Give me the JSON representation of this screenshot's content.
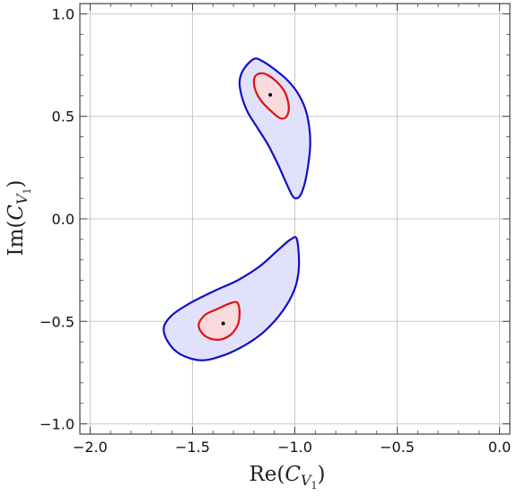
{
  "chart_data": {
    "type": "contour",
    "title": "",
    "xlabel": {
      "main": "Re(",
      "var": "C",
      "sub": "V",
      "subsub": "1",
      "close": ")"
    },
    "ylabel": {
      "main": "Im(",
      "var": "C",
      "sub": "V",
      "subsub": "1",
      "close": ")"
    },
    "xlim": [
      -2.05,
      0.05
    ],
    "ylim": [
      -1.05,
      1.05
    ],
    "grid": true,
    "x_ticks": [
      {
        "value": -2.0,
        "label": "−2.0"
      },
      {
        "value": -1.5,
        "label": "−1.5"
      },
      {
        "value": -1.0,
        "label": "−1.0"
      },
      {
        "value": -0.5,
        "label": "−0.5"
      },
      {
        "value": 0.0,
        "label": "0.0"
      }
    ],
    "y_ticks": [
      {
        "value": 1.0,
        "label": "1.0"
      },
      {
        "value": 0.5,
        "label": "0.5"
      },
      {
        "value": 0.0,
        "label": "0.0"
      },
      {
        "value": -0.5,
        "label": "−0.5"
      },
      {
        "value": -1.0,
        "label": "−1.0"
      }
    ],
    "colors": {
      "outer_stroke": "#1010c8",
      "outer_fill": "#e1e1fb",
      "inner_stroke": "#e01010",
      "inner_fill": "#fadadf",
      "point": "#000000",
      "grid": "#c8c8c8",
      "frame": "#444444"
    },
    "regions": [
      {
        "name": "upper",
        "best_fit": [
          -1.12,
          0.605
        ],
        "outer_contour": [
          [
            -1.2,
            0.78
          ],
          [
            -1.16,
            0.77
          ],
          [
            -1.1,
            0.73
          ],
          [
            -1.04,
            0.68
          ],
          [
            -0.99,
            0.62
          ],
          [
            -0.95,
            0.54
          ],
          [
            -0.93,
            0.45
          ],
          [
            -0.925,
            0.36
          ],
          [
            -0.935,
            0.26
          ],
          [
            -0.95,
            0.18
          ],
          [
            -0.97,
            0.12
          ],
          [
            -0.99,
            0.1
          ],
          [
            -1.01,
            0.11
          ],
          [
            -1.04,
            0.17
          ],
          [
            -1.08,
            0.26
          ],
          [
            -1.13,
            0.36
          ],
          [
            -1.18,
            0.44
          ],
          [
            -1.23,
            0.52
          ],
          [
            -1.26,
            0.6
          ],
          [
            -1.27,
            0.67
          ],
          [
            -1.25,
            0.73
          ]
        ],
        "inner_contour": [
          [
            -1.16,
            0.71
          ],
          [
            -1.13,
            0.7
          ],
          [
            -1.09,
            0.67
          ],
          [
            -1.05,
            0.62
          ],
          [
            -1.03,
            0.55
          ],
          [
            -1.04,
            0.5
          ],
          [
            -1.07,
            0.49
          ],
          [
            -1.11,
            0.52
          ],
          [
            -1.16,
            0.57
          ],
          [
            -1.19,
            0.62
          ],
          [
            -1.2,
            0.67
          ],
          [
            -1.19,
            0.7
          ]
        ]
      },
      {
        "name": "lower",
        "best_fit": [
          -1.35,
          -0.51
        ],
        "outer_contour": [
          [
            -0.99,
            -0.1
          ],
          [
            -1.02,
            -0.1
          ],
          [
            -1.08,
            -0.15
          ],
          [
            -1.17,
            -0.23
          ],
          [
            -1.28,
            -0.3
          ],
          [
            -1.39,
            -0.35
          ],
          [
            -1.51,
            -0.41
          ],
          [
            -1.6,
            -0.47
          ],
          [
            -1.64,
            -0.53
          ],
          [
            -1.62,
            -0.6
          ],
          [
            -1.56,
            -0.66
          ],
          [
            -1.46,
            -0.69
          ],
          [
            -1.36,
            -0.67
          ],
          [
            -1.25,
            -0.62
          ],
          [
            -1.15,
            -0.55
          ],
          [
            -1.06,
            -0.45
          ],
          [
            -1.0,
            -0.34
          ],
          [
            -0.98,
            -0.23
          ]
        ],
        "inner_contour": [
          [
            -1.28,
            -0.41
          ],
          [
            -1.31,
            -0.41
          ],
          [
            -1.38,
            -0.44
          ],
          [
            -1.44,
            -0.47
          ],
          [
            -1.47,
            -0.52
          ],
          [
            -1.44,
            -0.57
          ],
          [
            -1.38,
            -0.59
          ],
          [
            -1.32,
            -0.57
          ],
          [
            -1.28,
            -0.52
          ],
          [
            -1.27,
            -0.46
          ]
        ]
      }
    ]
  }
}
